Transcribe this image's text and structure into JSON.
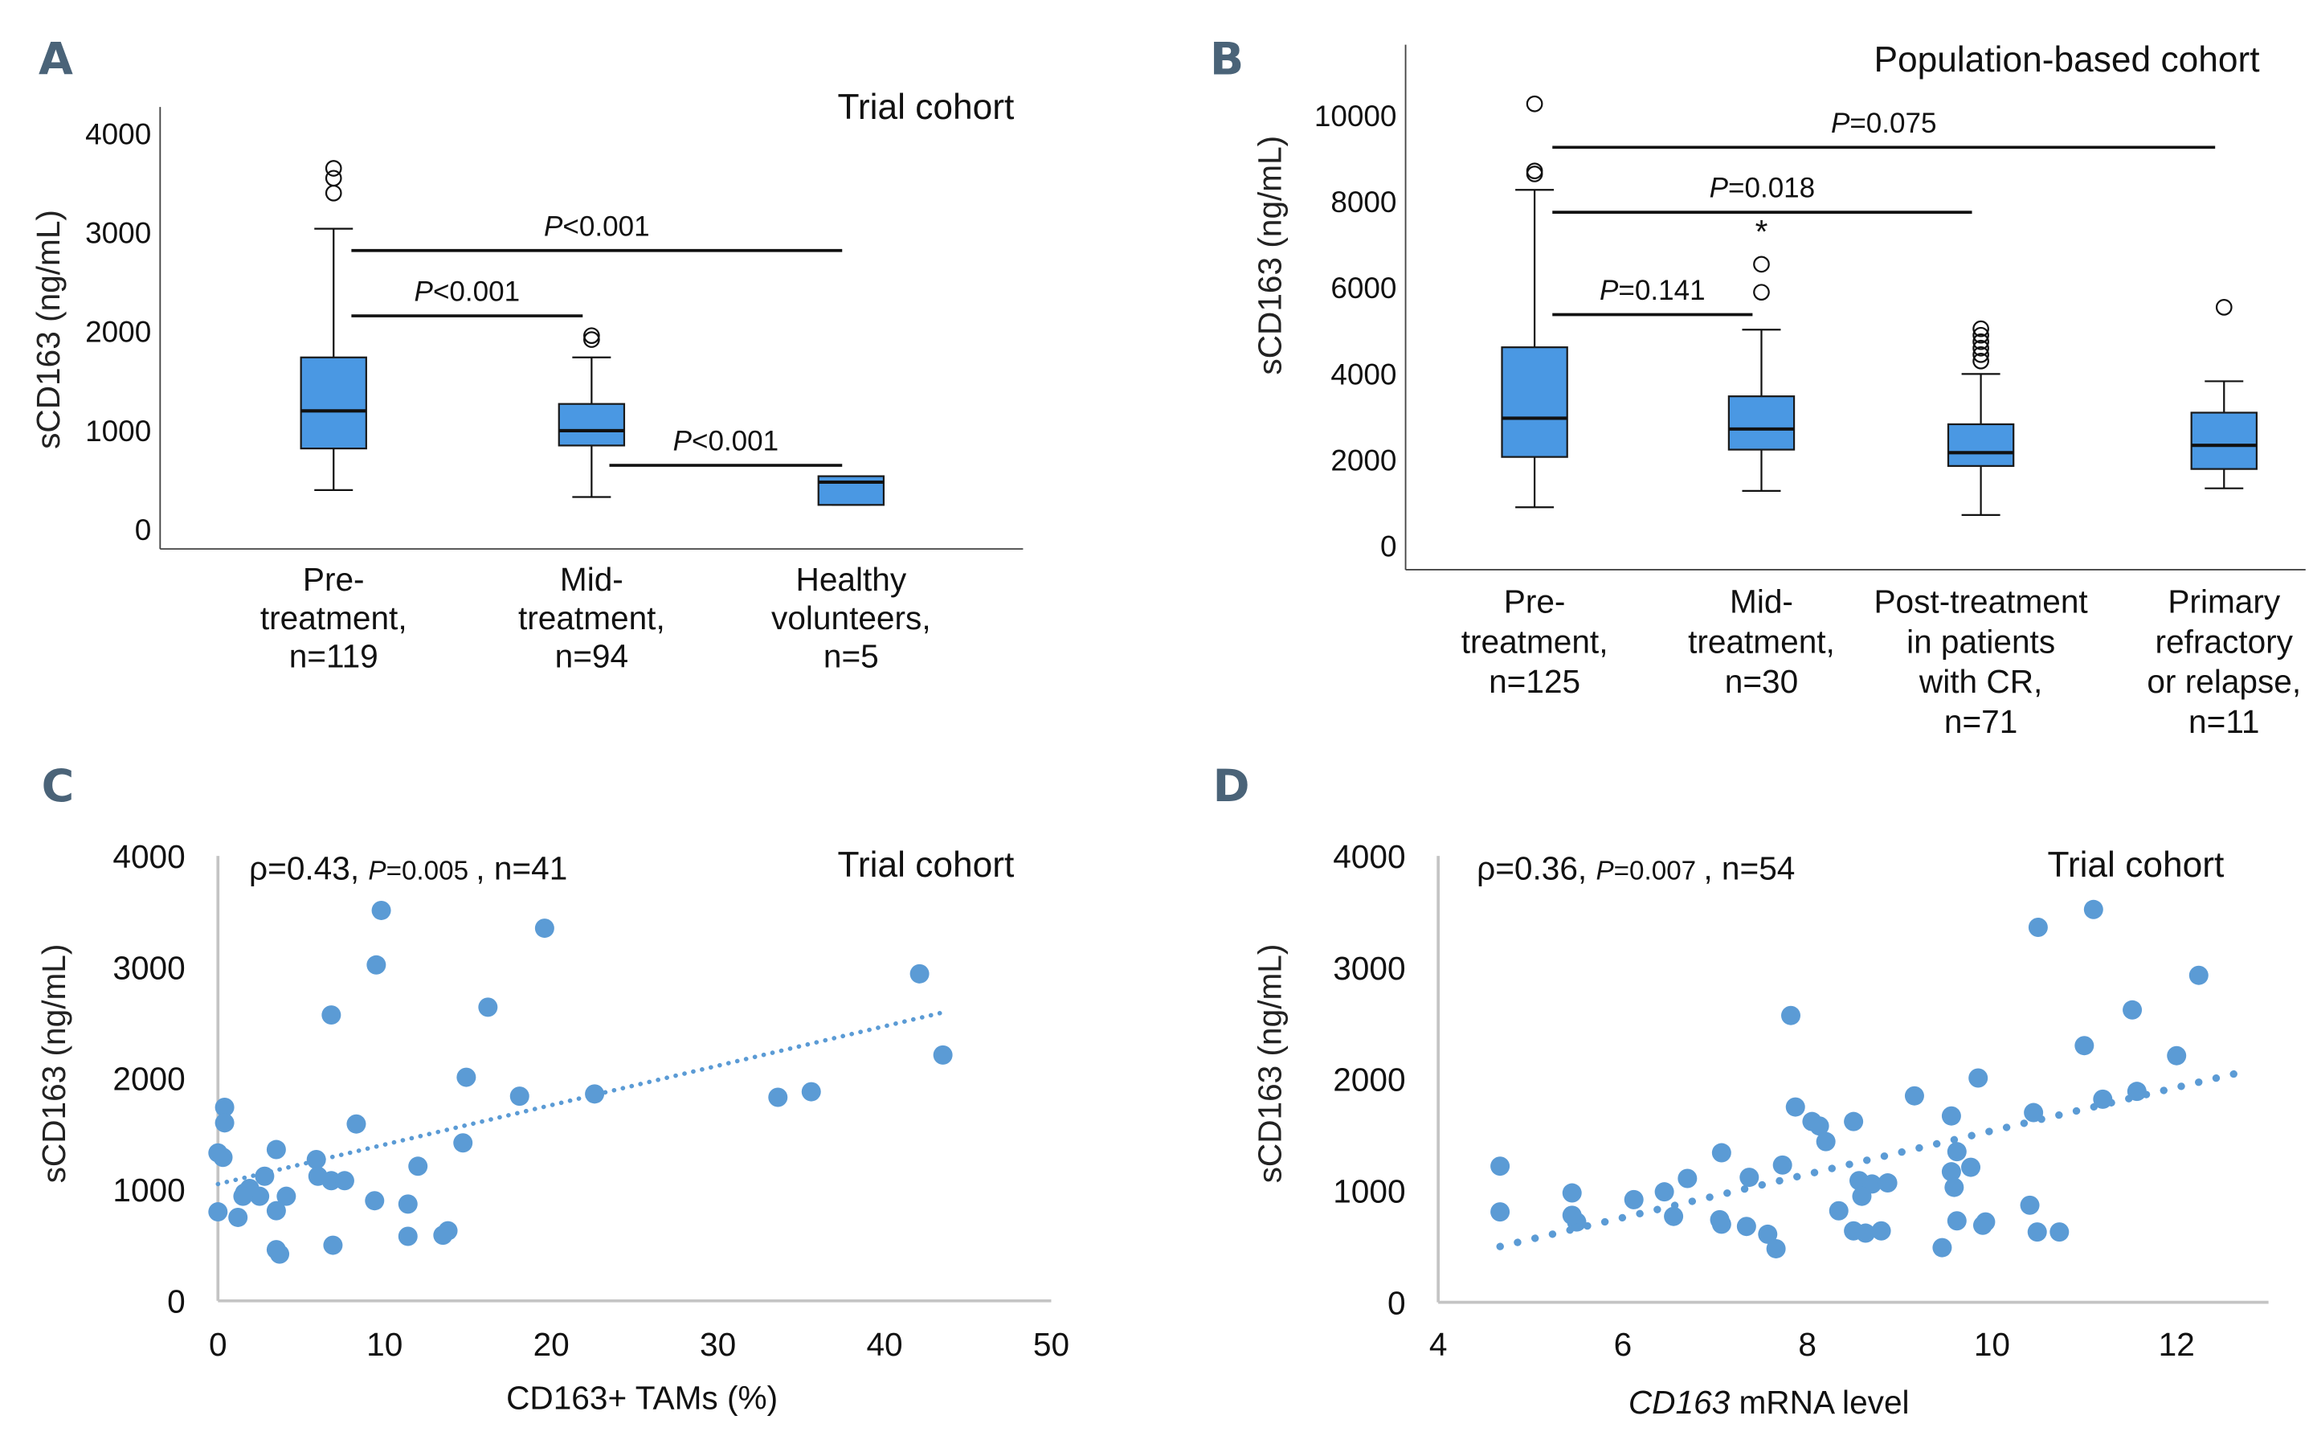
{
  "chart_data": [
    {
      "panel": "A",
      "type": "box",
      "title": "Trial cohort",
      "ylabel": "sCD163 (ng/mL)",
      "ylim": [
        0,
        4000
      ],
      "yticks": [
        "0",
        "1000",
        "2000",
        "3000",
        "4000"
      ],
      "categories": [
        {
          "lines": [
            "Pre-",
            "treatment,",
            "n=119"
          ]
        },
        {
          "lines": [
            "Mid-",
            "treatment,",
            "n=94"
          ]
        },
        {
          "lines": [
            "Healthy",
            "volunteers,",
            "n=5"
          ]
        }
      ],
      "boxes": [
        {
          "q1": 820,
          "median": 1200,
          "q3": 1740,
          "whisker_low": 400,
          "whisker_high": 3040,
          "outliers": [
            3400,
            3550,
            3650
          ],
          "stars": []
        },
        {
          "q1": 850,
          "median": 1000,
          "q3": 1270,
          "whisker_low": 330,
          "whisker_high": 1740,
          "outliers": [
            1920,
            1960
          ],
          "stars": []
        },
        {
          "q1": 250,
          "median": 480,
          "q3": 540,
          "whisker_low": 250,
          "whisker_high": 540,
          "outliers": [],
          "stars": []
        }
      ],
      "comparisons": [
        {
          "from": 0,
          "to": 2,
          "label_prefix": "P",
          "label_rest": "<0.001",
          "level": 2820
        },
        {
          "from": 0,
          "to": 1,
          "label_prefix": "P",
          "label_rest": "<0.001",
          "level": 2160
        },
        {
          "from": 1,
          "to": 2,
          "label_prefix": "P",
          "label_rest": "<0.001",
          "level": 650
        }
      ]
    },
    {
      "panel": "B",
      "type": "box",
      "title": "Population-based cohort",
      "ylabel": "sCD163 (ng/mL)",
      "ylim": [
        0,
        10000
      ],
      "yticks": [
        "0",
        "2000",
        "4000",
        "6000",
        "8000",
        "10000"
      ],
      "categories": [
        {
          "lines": [
            "Pre-",
            "treatment,",
            "n=125"
          ]
        },
        {
          "lines": [
            "Mid-",
            "treatment,",
            "n=30"
          ]
        },
        {
          "lines": [
            "Post-treatment",
            "in patients",
            "with CR,",
            "n=71"
          ]
        },
        {
          "lines": [
            "Primary",
            "refractory",
            "or relapse,",
            "n=11"
          ]
        }
      ],
      "boxes": [
        {
          "q1": 2070,
          "median": 2970,
          "q3": 4620,
          "whisker_low": 900,
          "whisker_high": 8280,
          "outliers": [
            8650,
            8720,
            10280
          ],
          "stars": []
        },
        {
          "q1": 2240,
          "median": 2720,
          "q3": 3480,
          "whisker_low": 1280,
          "whisker_high": 5030,
          "outliers": [
            5900,
            6550
          ],
          "stars": [
            7400
          ]
        },
        {
          "q1": 1860,
          "median": 2170,
          "q3": 2830,
          "whisker_low": 720,
          "whisker_high": 4000,
          "outliers": [
            4300,
            4450,
            4600,
            4750,
            4900,
            5050
          ],
          "stars": []
        },
        {
          "q1": 1790,
          "median": 2340,
          "q3": 3100,
          "whisker_low": 1340,
          "whisker_high": 3830,
          "outliers": [
            5550
          ],
          "stars": []
        }
      ],
      "comparisons": [
        {
          "from": 0,
          "to": 3,
          "label_prefix": "P",
          "label_rest": "=0.075",
          "level": 9270
        },
        {
          "from": 0,
          "to": 2,
          "label_prefix": "P",
          "label_rest": "=0.018",
          "level": 7760
        },
        {
          "from": 0,
          "to": 1,
          "label_prefix": "P",
          "label_rest": "=0.141",
          "level": 5380
        }
      ]
    },
    {
      "panel": "C",
      "type": "scatter",
      "title": "Trial cohort",
      "stats": {
        "rho": "ρ=0.43,",
        "p_prefix": "P",
        "p_rest": "=0.005",
        "n": ", n=41"
      },
      "xlabel": "CD163+ TAMs (%)",
      "ylabel": "sCD163 (ng/mL)",
      "xlim": [
        0,
        50
      ],
      "ylim": [
        0,
        4000
      ],
      "xticks": [
        "0",
        "10",
        "20",
        "30",
        "40",
        "50"
      ],
      "yticks": [
        "0",
        "1000",
        "2000",
        "3000",
        "4000"
      ],
      "trendline": {
        "x0": 0,
        "y0": 1050,
        "x1": 43.7,
        "y1": 2600,
        "style": "dotted"
      },
      "points": [
        [
          9.8,
          3510
        ],
        [
          19.6,
          3350
        ],
        [
          9.5,
          3020
        ],
        [
          42.1,
          2940
        ],
        [
          6.8,
          2570
        ],
        [
          16.2,
          2640
        ],
        [
          43.5,
          2210
        ],
        [
          14.9,
          2010
        ],
        [
          18.1,
          1840
        ],
        [
          22.6,
          1860
        ],
        [
          33.6,
          1830
        ],
        [
          35.6,
          1880
        ],
        [
          0.4,
          1740
        ],
        [
          0.4,
          1600
        ],
        [
          8.3,
          1590
        ],
        [
          14.7,
          1420
        ],
        [
          0.0,
          1330
        ],
        [
          0.3,
          1290
        ],
        [
          3.5,
          1360
        ],
        [
          5.9,
          1270
        ],
        [
          12.0,
          1210
        ],
        [
          2.8,
          1120
        ],
        [
          6.0,
          1120
        ],
        [
          6.8,
          1080
        ],
        [
          7.6,
          1080
        ],
        [
          1.6,
          970
        ],
        [
          1.9,
          1010
        ],
        [
          2.5,
          940
        ],
        [
          4.1,
          940
        ],
        [
          1.5,
          940
        ],
        [
          9.4,
          900
        ],
        [
          11.4,
          870
        ],
        [
          0.0,
          800
        ],
        [
          3.5,
          810
        ],
        [
          1.2,
          750
        ],
        [
          6.9,
          500
        ],
        [
          11.4,
          580
        ],
        [
          13.8,
          630
        ],
        [
          13.5,
          590
        ],
        [
          3.5,
          460
        ],
        [
          3.7,
          420
        ]
      ]
    },
    {
      "panel": "D",
      "type": "scatter",
      "title": "Trial cohort",
      "stats": {
        "rho": "ρ=0.36,",
        "p_prefix": "P",
        "p_rest": "=0.007",
        "n": ", n=54"
      },
      "xlabel_italic": "CD163",
      "xlabel_rest": " mRNA level",
      "ylabel": "sCD163 (ng/mL)",
      "xlim": [
        4,
        13
      ],
      "ylim": [
        0,
        4000
      ],
      "xticks": [
        "4",
        "6",
        "8",
        "10",
        "12"
      ],
      "yticks": [
        "0",
        "1000",
        "2000",
        "3000",
        "4000"
      ],
      "trendline": {
        "x0": 4.67,
        "y0": 500,
        "x1": 12.64,
        "y1": 2050,
        "style": "dotted"
      },
      "points": [
        [
          11.1,
          3520
        ],
        [
          10.5,
          3360
        ],
        [
          12.24,
          2930
        ],
        [
          11.52,
          2620
        ],
        [
          7.82,
          2570
        ],
        [
          11.0,
          2300
        ],
        [
          12.0,
          2210
        ],
        [
          9.85,
          2010
        ],
        [
          9.16,
          1850
        ],
        [
          7.87,
          1750
        ],
        [
          11.2,
          1820
        ],
        [
          11.57,
          1890
        ],
        [
          10.45,
          1700
        ],
        [
          9.56,
          1670
        ],
        [
          8.05,
          1620
        ],
        [
          8.13,
          1580
        ],
        [
          8.5,
          1620
        ],
        [
          8.2,
          1440
        ],
        [
          7.07,
          1340
        ],
        [
          9.62,
          1350
        ],
        [
          4.67,
          1220
        ],
        [
          7.73,
          1230
        ],
        [
          9.77,
          1210
        ],
        [
          6.7,
          1110
        ],
        [
          7.37,
          1120
        ],
        [
          9.56,
          1170
        ],
        [
          5.45,
          980
        ],
        [
          6.45,
          990
        ],
        [
          6.12,
          920
        ],
        [
          8.56,
          1090
        ],
        [
          8.7,
          1060
        ],
        [
          8.87,
          1070
        ],
        [
          9.59,
          1030
        ],
        [
          8.59,
          950
        ],
        [
          4.67,
          810
        ],
        [
          8.34,
          820
        ],
        [
          10.41,
          870
        ],
        [
          5.5,
          720
        ],
        [
          6.55,
          770
        ],
        [
          7.05,
          740
        ],
        [
          7.07,
          700
        ],
        [
          7.34,
          680
        ],
        [
          9.62,
          730
        ],
        [
          9.93,
          720
        ],
        [
          9.9,
          690
        ],
        [
          7.57,
          610
        ],
        [
          8.5,
          640
        ],
        [
          8.63,
          620
        ],
        [
          8.8,
          640
        ],
        [
          10.49,
          630
        ],
        [
          10.73,
          630
        ],
        [
          7.66,
          480
        ],
        [
          9.46,
          490
        ],
        [
          5.45,
          780
        ]
      ]
    }
  ]
}
